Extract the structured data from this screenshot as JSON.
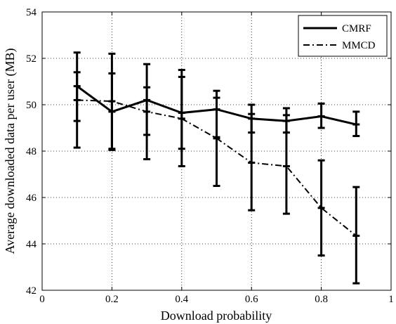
{
  "chart_data": {
    "type": "line",
    "xlabel": "Download probability",
    "ylabel": "Average downloaded data per user (MB)",
    "xlim": [
      0,
      1
    ],
    "ylim": [
      42,
      54
    ],
    "xticks": [
      0,
      0.2,
      0.4,
      0.6,
      0.8,
      1
    ],
    "xtick_labels": [
      "0",
      "0.2",
      "0.4",
      "0.6",
      "0.8",
      "1"
    ],
    "yticks": [
      42,
      44,
      46,
      48,
      50,
      52,
      54
    ],
    "ytick_labels": [
      "42",
      "44",
      "46",
      "48",
      "50",
      "52",
      "54"
    ],
    "grid": true,
    "legend_position": "top-right",
    "x": [
      0.1,
      0.2,
      0.3,
      0.4,
      0.5,
      0.6,
      0.7,
      0.8,
      0.9
    ],
    "series": [
      {
        "name": "CMRF",
        "style": "solid",
        "color": "#000000",
        "values": [
          50.8,
          49.7,
          50.2,
          49.65,
          49.8,
          49.4,
          49.3,
          49.5,
          49.15
        ],
        "err_low": [
          49.3,
          48.1,
          48.7,
          48.1,
          48.6,
          48.8,
          48.8,
          49.0,
          48.65
        ],
        "err_high": [
          52.25,
          51.35,
          51.75,
          51.2,
          50.3,
          50.0,
          49.85,
          50.05,
          49.7
        ]
      },
      {
        "name": "MMCD",
        "style": "dash-dot",
        "color": "#000000",
        "values": [
          50.2,
          50.15,
          49.7,
          49.4,
          48.55,
          47.5,
          47.35,
          45.55,
          44.35
        ],
        "err_low": [
          48.15,
          48.05,
          47.65,
          47.35,
          46.5,
          45.45,
          45.3,
          43.5,
          42.3
        ],
        "err_high": [
          51.4,
          52.2,
          50.75,
          51.5,
          50.6,
          49.6,
          49.55,
          47.6,
          46.45
        ]
      }
    ]
  }
}
